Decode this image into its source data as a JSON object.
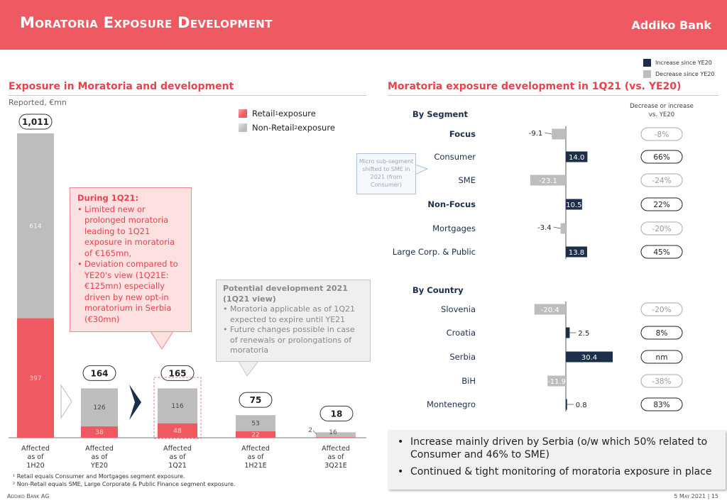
{
  "header": {
    "title": "Moratoria Exposure Development",
    "logo": "Addiko Bank"
  },
  "legend_top": {
    "items": [
      {
        "label": "Increase since YE20",
        "color": "#1b2e4a"
      },
      {
        "label": "Decrease since YE20",
        "color": "#bdbdbd"
      }
    ]
  },
  "left_section": {
    "title": "Exposure in Moratoria and development",
    "subtitle": "Reported, €mn",
    "legend": [
      {
        "label": "Retail",
        "sup": "1",
        "suffix": " exposure",
        "color": "#ef5a62"
      },
      {
        "label": "Non-Retail",
        "sup": "2",
        "suffix": " exposure",
        "color": "#bdbdbd"
      }
    ],
    "callout_red": {
      "head": "During 1Q21:",
      "bullets": [
        "Limited new or prolonged moratoria leading to 1Q21 exposure in moratoria of €165mn,",
        "Deviation compared to YE20's view (1Q21E: €125mn) especially driven by new opt-in moratorium in Serbia (€30mn)"
      ]
    },
    "callout_grey": {
      "head": "Potential development 2021 (1Q21 view)",
      "bullets": [
        "Moratoria applicable as of 1Q21 expected to expire until YE21",
        "Future changes possible in case of renewals or prolongations of moratoria"
      ]
    }
  },
  "right_section": {
    "title": "Moratoria exposure development in 1Q21 (vs. YE20)",
    "column_header": "Decrease or increase vs. YE20",
    "by_segment_label": "By Segment",
    "by_country_label": "By Country",
    "micro_note": "Micro sub-segment shifted to SME in 2021 (from Consumer)"
  },
  "chart_data": [
    {
      "type": "bar",
      "stacked": true,
      "categories": [
        "Affected as of 1H20",
        "Affected as of YE20",
        "Affected as of 1Q21",
        "Affected as of 1H21E",
        "Affected as of 3Q21E"
      ],
      "series": [
        {
          "name": "Retail exposure",
          "values": [
            397,
            38,
            48,
            22,
            2
          ],
          "color": "#ef5a62"
        },
        {
          "name": "Non-Retail exposure",
          "values": [
            614,
            126,
            116,
            53,
            16
          ],
          "color": "#bdbdbd"
        }
      ],
      "totals": [
        "1,011",
        "164",
        "165",
        "75",
        "18"
      ],
      "value_labels": {
        "retail": [
          "397",
          "38",
          "48",
          "22",
          "2"
        ],
        "non_retail": [
          "614",
          "126",
          "116",
          "53",
          "16"
        ]
      }
    },
    {
      "type": "bar",
      "orientation": "horizontal",
      "rows": [
        {
          "label": "Focus",
          "value": -9.1,
          "label_text": "-9.1",
          "change": "-8%",
          "bold": true,
          "group": "segment"
        },
        {
          "label": "Consumer",
          "value": 14.0,
          "label_text": "14.0",
          "change": "66%",
          "bold": false,
          "group": "segment"
        },
        {
          "label": "SME",
          "value": -23.1,
          "label_text": "-23.1",
          "change": "-24%",
          "bold": false,
          "group": "segment"
        },
        {
          "label": "Non-Focus",
          "value": 10.5,
          "label_text": "10.5",
          "change": "22%",
          "bold": true,
          "group": "segment"
        },
        {
          "label": "Mortgages",
          "value": -3.4,
          "label_text": "-3.4",
          "change": "-20%",
          "bold": false,
          "group": "segment"
        },
        {
          "label": "Large Corp. & Public",
          "value": 13.8,
          "label_text": "13.8",
          "change": "45%",
          "bold": false,
          "group": "segment"
        },
        {
          "label": "Slovenia",
          "value": -20.4,
          "label_text": "-20.4",
          "change": "-20%",
          "bold": false,
          "group": "country"
        },
        {
          "label": "Croatia",
          "value": 2.5,
          "label_text": "2.5",
          "change": "8%",
          "bold": false,
          "group": "country"
        },
        {
          "label": "Serbia",
          "value": 30.4,
          "label_text": "30.4",
          "change": "nm",
          "bold": false,
          "group": "country"
        },
        {
          "label": "BiH",
          "value": -11.9,
          "label_text": "-11.9",
          "change": "-38%",
          "bold": false,
          "group": "country"
        },
        {
          "label": "Montenegro",
          "value": 0.8,
          "label_text": "0.8",
          "change": "83%",
          "bold": false,
          "group": "country"
        }
      ],
      "colors": {
        "increase": "#1b2e4a",
        "decrease": "#bdbdbd"
      }
    }
  ],
  "bullets": [
    "Increase mainly driven by Serbia (o/w which 50% related to Consumer and 46% to SME)",
    "Continued & tight monitoring of moratoria exposure in place"
  ],
  "footnotes": [
    "¹ Retail equals Consumer and Mortgages segment exposure.",
    "² Non-Retail equals SME, Large Corporate & Public Finance segment exposure."
  ],
  "footer": {
    "left": "Addiko Bank AG",
    "right": "5 May 2021 | 15"
  }
}
